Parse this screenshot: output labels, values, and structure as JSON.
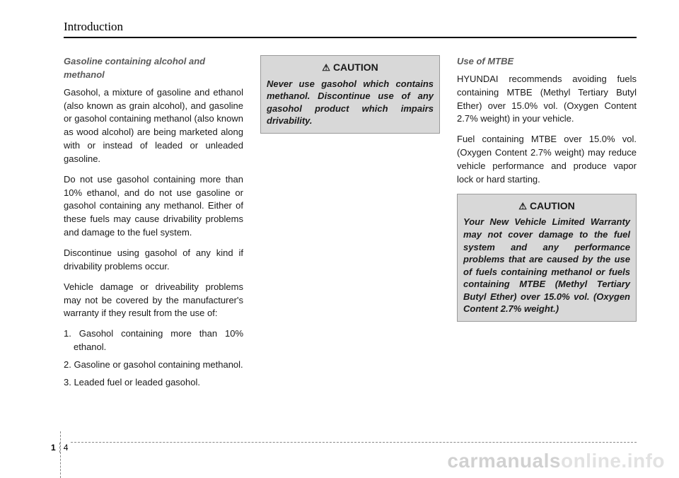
{
  "header": {
    "title": "Introduction"
  },
  "col1": {
    "heading": "Gasoline containing alcohol and methanol",
    "p1": "Gasohol, a mixture of gasoline and ethanol (also known as grain alcohol), and gasoline or gasohol containing methanol (also known as wood alcohol) are being marketed along with or instead of leaded or unleaded gasoline.",
    "p2": "Do not use gasohol containing more than 10% ethanol, and do not use gasoline or gasohol containing any methanol. Either of these fuels may cause drivability problems and damage to the fuel system.",
    "p3": "Discontinue using gasohol of any kind if drivability problems occur.",
    "p4": "Vehicle damage or driveability problems may not be covered by the manufacturer's warranty if they result from the use of:",
    "li1": "1. Gasohol containing more than 10% ethanol.",
    "li2": "2. Gasoline or gasohol containing methanol.",
    "li3": "3. Leaded fuel or leaded gasohol."
  },
  "col2": {
    "caution_label": "CAUTION",
    "caution_body": "Never use gasohol which contains methanol. Discontinue use of any gasohol product which impairs drivability."
  },
  "col3": {
    "heading": "Use of MTBE",
    "p1": "HYUNDAI recommends avoiding fuels containing MTBE (Methyl Tertiary Butyl Ether) over 15.0% vol. (Oxygen Content 2.7% weight) in your vehicle.",
    "p2": "Fuel containing MTBE over 15.0% vol. (Oxygen Content 2.7% weight) may reduce vehicle performance and produce vapor lock or hard starting.",
    "caution_label": "CAUTION",
    "caution_body": "Your New Vehicle Limited Warranty may not cover damage to the fuel system and any performance problems that are caused by the use of fuels containing methanol or fuels containing MTBE (Methyl Tertiary Butyl Ether) over 15.0% vol. (Oxygen Content 2.7% weight.)"
  },
  "footer": {
    "section": "1",
    "page": "4",
    "watermark1": "carmanuals",
    "watermark2": "online.info"
  },
  "icons": {
    "warning": "⚠"
  }
}
